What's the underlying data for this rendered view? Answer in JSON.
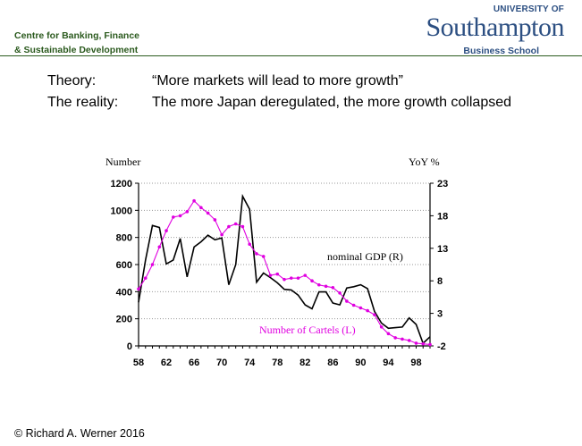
{
  "header": {
    "centre_line1": "Centre for Banking, Finance",
    "centre_line2": "& Sustainable Development",
    "university_label": "UNIVERSITY OF",
    "university_name": "Southampton",
    "school": "Business School"
  },
  "slide": {
    "theory_label": "Theory:",
    "theory_text": "“More markets will lead to more growth”",
    "reality_label": "The reality:",
    "reality_text": "The more Japan deregulated, the more growth collapsed"
  },
  "footer": {
    "copyright": "© Richard A. Werner 2016"
  },
  "colors": {
    "gdp": "#000000",
    "cartels": "#e000e0",
    "brand_green": "#2b5a1e",
    "brand_blue": "#2c4f82"
  },
  "chart_data": {
    "type": "line",
    "left_axis_title": "Number",
    "right_axis_title": "YoY %",
    "ylim_left": [
      0,
      1200
    ],
    "yticks_left": [
      0,
      200,
      400,
      600,
      800,
      1000,
      1200
    ],
    "ylim_right": [
      -2,
      23
    ],
    "yticks_right": [
      -2,
      3,
      8,
      13,
      18,
      23
    ],
    "xlim": [
      1958,
      2000
    ],
    "xtick_labels": [
      "58",
      "62",
      "66",
      "70",
      "74",
      "78",
      "82",
      "86",
      "90",
      "94",
      "98"
    ],
    "grid": "horizontal-dotted",
    "series": [
      {
        "name": "nominal GDP (R)",
        "axis": "right",
        "color": "#000000",
        "x": [
          1958,
          1959,
          1960,
          1961,
          1962,
          1963,
          1964,
          1965,
          1966,
          1967,
          1968,
          1969,
          1970,
          1971,
          1972,
          1973,
          1974,
          1975,
          1976,
          1977,
          1978,
          1979,
          1980,
          1981,
          1982,
          1983,
          1984,
          1985,
          1986,
          1987,
          1988,
          1989,
          1990,
          1991,
          1992,
          1993,
          1994,
          1995,
          1996,
          1997,
          1998,
          1999,
          2000
        ],
        "values": [
          4.7,
          11.2,
          16.5,
          16.2,
          10.6,
          11.2,
          14.5,
          8.6,
          13.2,
          14.0,
          15.0,
          14.3,
          14.6,
          7.4,
          10.5,
          21.0,
          19.0,
          7.8,
          9.2,
          8.5,
          7.7,
          6.7,
          6.6,
          5.8,
          4.3,
          3.7,
          6.3,
          6.3,
          4.6,
          4.3,
          6.9,
          7.1,
          7.4,
          6.8,
          3.3,
          1.5,
          0.7,
          0.8,
          0.9,
          2.3,
          1.3,
          -1.6,
          -0.6
        ]
      },
      {
        "name": "Number of Cartels (L)",
        "axis": "left",
        "color": "#e000e0",
        "x": [
          1958,
          1959,
          1960,
          1961,
          1962,
          1963,
          1964,
          1965,
          1966,
          1967,
          1968,
          1969,
          1970,
          1971,
          1972,
          1973,
          1974,
          1975,
          1976,
          1977,
          1978,
          1979,
          1980,
          1981,
          1982,
          1983,
          1984,
          1985,
          1986,
          1987,
          1988,
          1989,
          1990,
          1991,
          1992,
          1993,
          1994,
          1995,
          1996,
          1997,
          1998,
          1999,
          2000
        ],
        "values": [
          420,
          500,
          600,
          730,
          850,
          950,
          960,
          990,
          1070,
          1020,
          980,
          930,
          820,
          880,
          900,
          880,
          750,
          680,
          660,
          520,
          530,
          490,
          500,
          500,
          520,
          480,
          450,
          440,
          430,
          390,
          330,
          300,
          280,
          260,
          230,
          140,
          90,
          60,
          50,
          40,
          20,
          15,
          10
        ]
      }
    ],
    "annotations": [
      {
        "text": "nominal GDP (R)",
        "series": "nominal GDP (R)"
      },
      {
        "text": "Number of Cartels (L)",
        "series": "Number of Cartels (L)"
      }
    ]
  }
}
